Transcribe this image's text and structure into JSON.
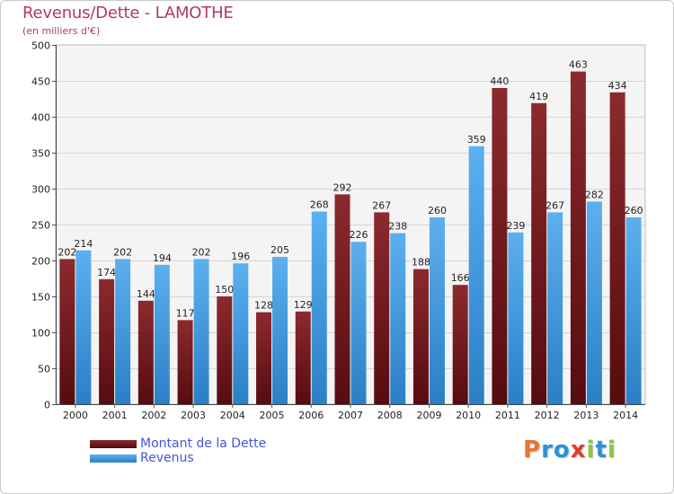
{
  "chart_data": {
    "type": "bar",
    "title": "Revenus/Dette - LAMOTHE",
    "subtitle": "(en milliers d'€)",
    "categories": [
      "2000",
      "2001",
      "2002",
      "2003",
      "2004",
      "2005",
      "2006",
      "2007",
      "2008",
      "2009",
      "2010",
      "2011",
      "2012",
      "2013",
      "2014"
    ],
    "series": [
      {
        "name": "Montant de la Dette",
        "color": "#7a1f24",
        "values": [
          202,
          174,
          144,
          117,
          150,
          128,
          129,
          292,
          267,
          188,
          166,
          440,
          419,
          463,
          434
        ]
      },
      {
        "name": "Revenus",
        "color": "#3a97dc",
        "values": [
          214,
          202,
          194,
          202,
          196,
          205,
          268,
          226,
          238,
          260,
          359,
          239,
          267,
          282,
          260
        ]
      }
    ],
    "ylim": [
      0,
      500
    ],
    "yticks": [
      0,
      50,
      100,
      150,
      200,
      250,
      300,
      350,
      400,
      450,
      500
    ],
    "grid": true,
    "legend_position": "bottom-left"
  },
  "logo": {
    "letters": [
      {
        "ch": "P",
        "color": "#e8762b"
      },
      {
        "ch": "r",
        "color": "#2f8fd8"
      },
      {
        "ch": "o",
        "color": "#2f8fd8"
      },
      {
        "ch": "x",
        "color": "#e23a2f"
      },
      {
        "ch": "i",
        "color": "#8dc63f"
      },
      {
        "ch": "t",
        "color": "#2f8fd8"
      },
      {
        "ch": "i",
        "color": "#8dc63f"
      }
    ]
  }
}
